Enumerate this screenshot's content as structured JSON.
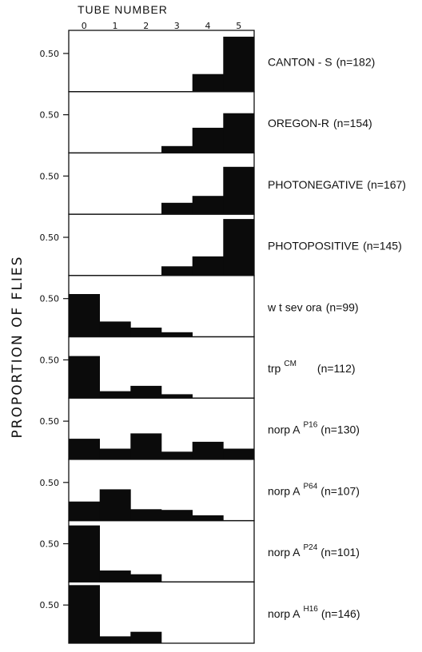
{
  "chart_data": {
    "type": "bar",
    "xlabel": "TUBE NUMBER",
    "ylabel": "PROPORTION OF FLIES",
    "categories": [
      "0",
      "1",
      "2",
      "3",
      "4",
      "5"
    ],
    "ytick": "0.50",
    "ylim": [
      0,
      0.75
    ],
    "series": [
      {
        "name": "CANTON - S",
        "sup": "",
        "n": "(n=182)",
        "values": [
          0,
          0,
          0,
          0,
          0.23,
          0.72
        ]
      },
      {
        "name": "OREGON-R",
        "sup": "",
        "n": "(n=154)",
        "values": [
          0,
          0,
          0,
          0.09,
          0.33,
          0.52
        ]
      },
      {
        "name": "PHOTONEGATIVE",
        "sup": "",
        "n": "(n=167)",
        "values": [
          0,
          0,
          0,
          0.15,
          0.24,
          0.62
        ]
      },
      {
        "name": "PHOTOPOSITIVE",
        "sup": "",
        "n": "(n=145)",
        "values": [
          0,
          0,
          0,
          0.12,
          0.25,
          0.74
        ]
      },
      {
        "name": "w t sev ora",
        "sup": "",
        "n": "(n=99)",
        "values": [
          0.56,
          0.2,
          0.12,
          0.06,
          0,
          0
        ]
      },
      {
        "name": "trp",
        "sup": "CM",
        "n": "(n=112)",
        "values": [
          0.55,
          0.09,
          0.16,
          0.05,
          0,
          0
        ]
      },
      {
        "name": "norp A",
        "sup": "P16",
        "n": "(n=130)",
        "values": [
          0.27,
          0.14,
          0.34,
          0.1,
          0.23,
          0.14
        ]
      },
      {
        "name": "norp A",
        "sup": "P64",
        "n": "(n=107)",
        "values": [
          0.25,
          0.41,
          0.15,
          0.14,
          0.07,
          0
        ]
      },
      {
        "name": "norp A",
        "sup": "P24",
        "n": "(n=101)",
        "values": [
          0.74,
          0.15,
          0.1,
          0,
          0,
          0
        ]
      },
      {
        "name": "norp A",
        "sup": "H16",
        "n": "(n=146)",
        "values": [
          0.76,
          0.09,
          0.15,
          0,
          0,
          0
        ]
      }
    ]
  }
}
